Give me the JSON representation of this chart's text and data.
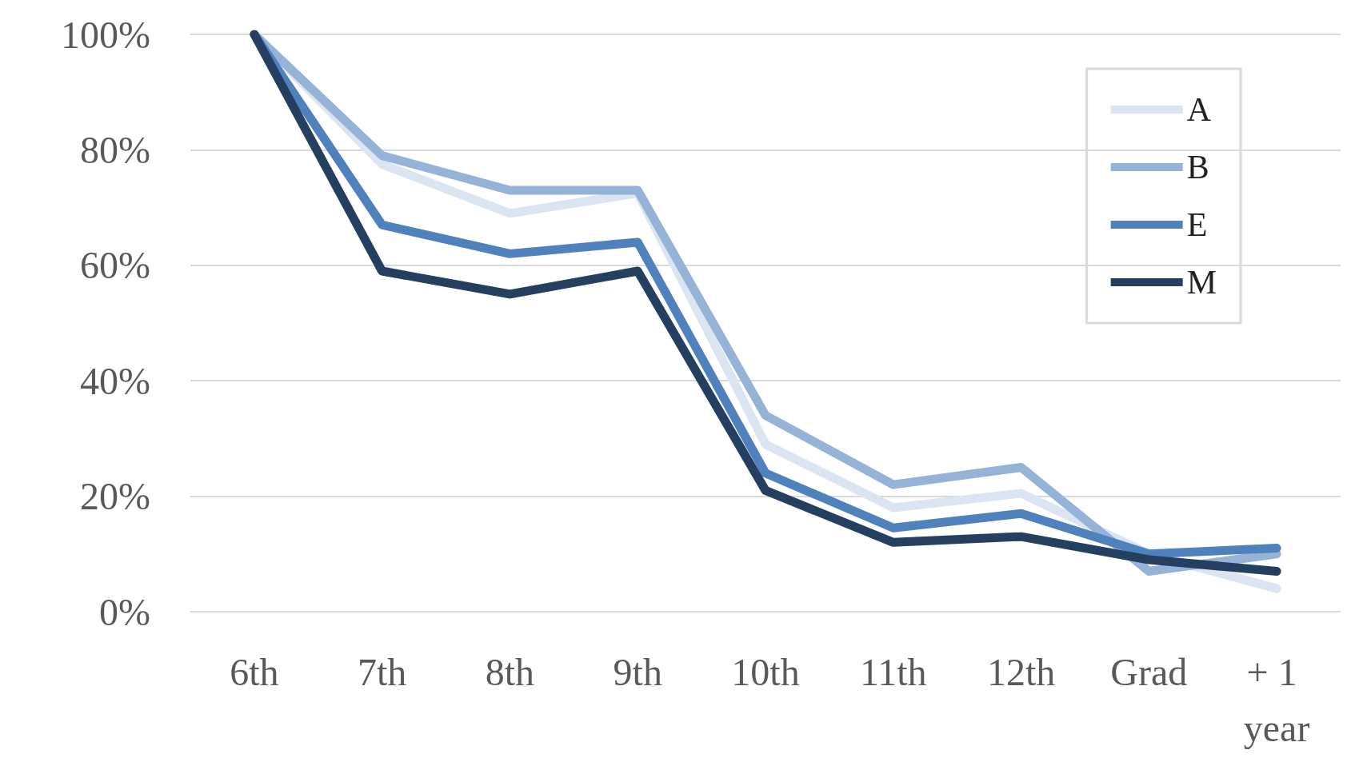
{
  "chart_data": {
    "type": "line",
    "categories": [
      "6th",
      "7th",
      "8th",
      "9th",
      "10th",
      "11th",
      "12th",
      "Grad",
      "+ 1 year"
    ],
    "series": [
      {
        "name": "A",
        "color": "#dbe5f1",
        "values": [
          100,
          77.5,
          69,
          72.5,
          29,
          18,
          20.5,
          10,
          4
        ]
      },
      {
        "name": "B",
        "color": "#95b3d7",
        "values": [
          100,
          79,
          73,
          73,
          34,
          22,
          25,
          7,
          10
        ]
      },
      {
        "name": "E",
        "color": "#4f81bd",
        "values": [
          100,
          67,
          62,
          64,
          24,
          14.5,
          17,
          10,
          11
        ]
      },
      {
        "name": "M",
        "color": "#243f60",
        "values": [
          100,
          59,
          55,
          59,
          21,
          12,
          13,
          9,
          7
        ]
      }
    ],
    "ylim": [
      0,
      100
    ],
    "yticks": [
      {
        "value": 0,
        "label": "0%"
      },
      {
        "value": 20,
        "label": "20%"
      },
      {
        "value": 40,
        "label": "40%"
      },
      {
        "value": 60,
        "label": "60%"
      },
      {
        "value": 80,
        "label": "80%"
      },
      {
        "value": 100,
        "label": "100%"
      }
    ],
    "grid": "y",
    "legend": "top right",
    "marker": "none",
    "line_style": "solid"
  }
}
